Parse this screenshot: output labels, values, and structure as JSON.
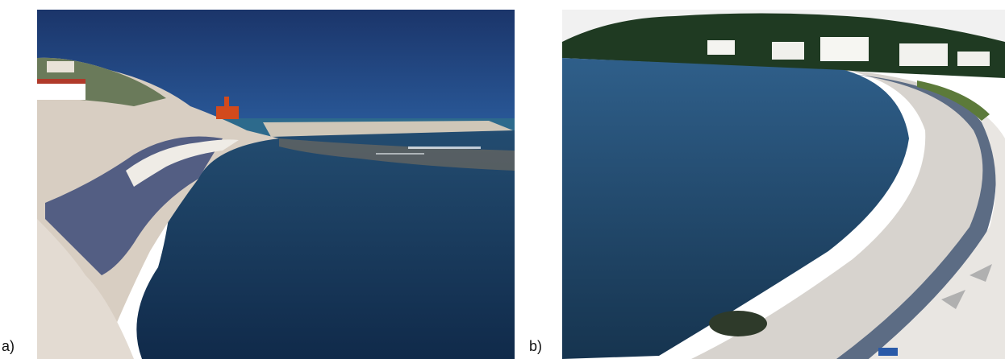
{
  "panels": [
    {
      "label": "a)",
      "description_icon": "coastal-inlet-breakwater-photo"
    },
    {
      "label": "b)",
      "description_icon": "curved-beach-seawall-photo"
    }
  ],
  "colors": {
    "sky_a": "#1f3f7c",
    "water_a": "#16375f",
    "sand": "#d9cfc4",
    "sky_b": "#f2f2f2",
    "water_b": "#1e4a70",
    "forest": "#1f3a22"
  }
}
